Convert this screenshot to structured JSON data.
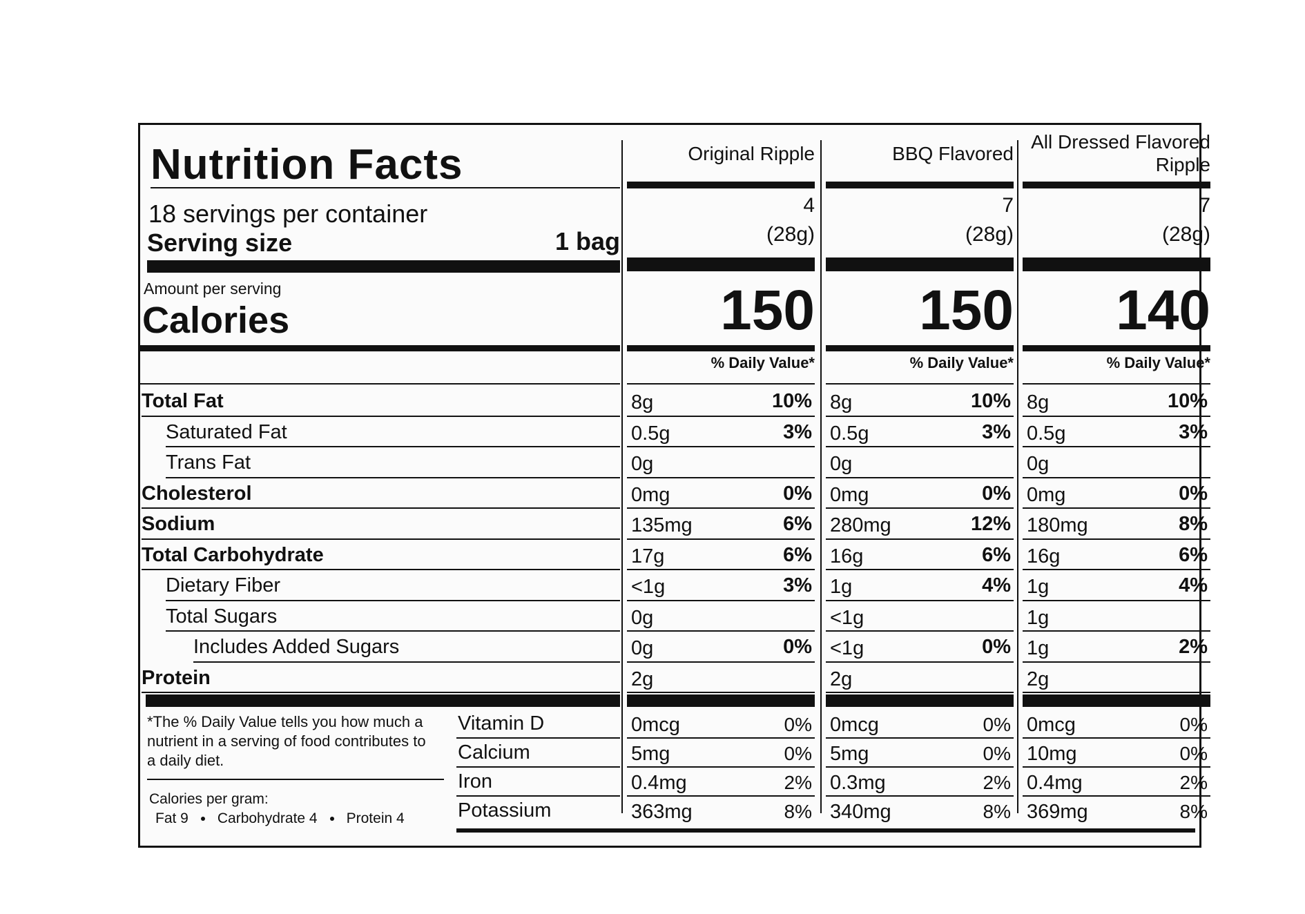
{
  "header": {
    "title": "Nutrition Facts",
    "servings": "18 servings per container",
    "serving_size_label": "Serving size",
    "serving_size": "1 bag",
    "amount_per_serving": "Amount per serving",
    "calories_label": "Calories"
  },
  "columns": [
    {
      "name": "Original Ripple",
      "servings": "4",
      "serving_weight": "(28g)",
      "calories": "150",
      "dv_header": "% Daily Value*"
    },
    {
      "name": "BBQ Flavored",
      "servings": "7",
      "serving_weight": "(28g)",
      "calories": "150",
      "dv_header": "% Daily Value*"
    },
    {
      "name": "All Dressed Flavored Ripple",
      "servings": "7",
      "serving_weight": "(28g)",
      "calories": "140",
      "dv_header": "% Daily Value*"
    }
  ],
  "nutrients": [
    {
      "name": "Total Fat",
      "bold": true,
      "indent": 0,
      "amounts": [
        "8g",
        "8g",
        "8g"
      ],
      "dvs": [
        "10%",
        "10%",
        "10%"
      ]
    },
    {
      "name": "Saturated Fat",
      "bold": false,
      "indent": 1,
      "amounts": [
        "0.5g",
        "0.5g",
        "0.5g"
      ],
      "dvs": [
        "3%",
        "3%",
        "3%"
      ]
    },
    {
      "name": "Trans Fat",
      "bold": false,
      "indent": 1,
      "amounts": [
        "0g",
        "0g",
        "0g"
      ],
      "dvs": [
        null,
        null,
        null
      ]
    },
    {
      "name": "Cholesterol",
      "bold": true,
      "indent": 0,
      "amounts": [
        "0mg",
        "0mg",
        "0mg"
      ],
      "dvs": [
        "0%",
        "0%",
        "0%"
      ]
    },
    {
      "name": "Sodium",
      "bold": true,
      "indent": 0,
      "amounts": [
        "135mg",
        "280mg",
        "180mg"
      ],
      "dvs": [
        "6%",
        "12%",
        "8%"
      ]
    },
    {
      "name": "Total Carbohydrate",
      "bold": true,
      "indent": 0,
      "amounts": [
        "17g",
        "16g",
        "16g"
      ],
      "dvs": [
        "6%",
        "6%",
        "6%"
      ]
    },
    {
      "name": "Dietary Fiber",
      "bold": false,
      "indent": 1,
      "amounts": [
        "<1g",
        "1g",
        "1g"
      ],
      "dvs": [
        "3%",
        "4%",
        "4%"
      ]
    },
    {
      "name": "Total Sugars",
      "bold": false,
      "indent": 1,
      "amounts": [
        "0g",
        "<1g",
        "1g"
      ],
      "dvs": [
        null,
        null,
        null
      ]
    },
    {
      "name": "Includes Added Sugars",
      "bold": false,
      "indent": 2,
      "amounts": [
        "0g",
        "<1g",
        "1g"
      ],
      "dvs": [
        "0%",
        "0%",
        "2%"
      ]
    },
    {
      "name": "Protein",
      "bold": true,
      "indent": 0,
      "amounts": [
        "2g",
        "2g",
        "2g"
      ],
      "dvs": [
        null,
        null,
        null
      ]
    }
  ],
  "vitamins": [
    {
      "name": "Vitamin D",
      "amounts": [
        "0mcg",
        "0mcg",
        "0mcg"
      ],
      "dvs": [
        "0%",
        "0%",
        "0%"
      ]
    },
    {
      "name": "Calcium",
      "amounts": [
        "5mg",
        "5mg",
        "10mg"
      ],
      "dvs": [
        "0%",
        "0%",
        "0%"
      ]
    },
    {
      "name": "Iron",
      "amounts": [
        "0.4mg",
        "0.3mg",
        "0.4mg"
      ],
      "dvs": [
        "2%",
        "2%",
        "2%"
      ]
    },
    {
      "name": "Potassium",
      "amounts": [
        "363mg",
        "340mg",
        "369mg"
      ],
      "dvs": [
        "8%",
        "8%",
        "8%"
      ]
    }
  ],
  "footnote": "*The % Daily Value tells you how much a nutrient in a serving of food contributes to a daily diet.",
  "calories_per_gram": {
    "label": "Calories per gram:",
    "items": [
      "Fat 9",
      "Carbohydrate 4",
      "Protein 4"
    ]
  }
}
